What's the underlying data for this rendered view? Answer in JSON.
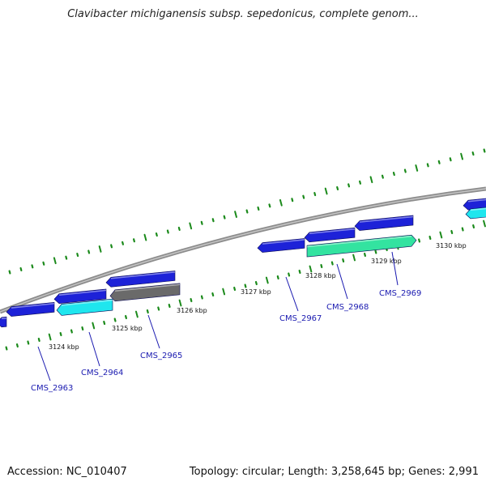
{
  "header": {
    "title": "Clavibacter michiganensis subsp. sepedonicus, complete genom..."
  },
  "footer": {
    "accession": "Accession: NC_010407",
    "summary": "Topology: circular; Length: 3,258,645 bp; Genes: 2,991"
  },
  "colors": {
    "backbone": "#8c8c8c",
    "gene_blue": "#1d22d8",
    "gene_cyan": "#1fe6ee",
    "gene_gray": "#6a6a6a",
    "gene_green": "#33e3a0",
    "tick": "#1b8a1b",
    "label": "#1a1ab0"
  },
  "kbp_labels": [
    "3124 kbp",
    "3125 kbp",
    "3126 kbp",
    "3127 kbp",
    "3128 kbp",
    "3129 kbp",
    "3130 kbp"
  ],
  "gene_labels": [
    "CMS_2963",
    "CMS_2964",
    "CMS_2965",
    "CMS_2967",
    "CMS_2968",
    "CMS_2969"
  ]
}
